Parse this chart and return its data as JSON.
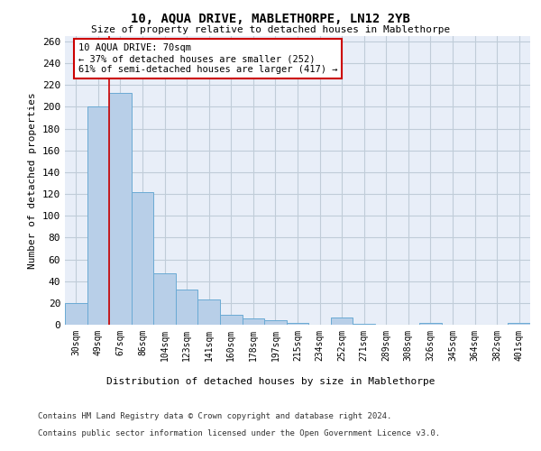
{
  "title": "10, AQUA DRIVE, MABLETHORPE, LN12 2YB",
  "subtitle": "Size of property relative to detached houses in Mablethorpe",
  "xlabel": "Distribution of detached houses by size in Mablethorpe",
  "ylabel": "Number of detached properties",
  "categories": [
    "30sqm",
    "49sqm",
    "67sqm",
    "86sqm",
    "104sqm",
    "123sqm",
    "141sqm",
    "160sqm",
    "178sqm",
    "197sqm",
    "215sqm",
    "234sqm",
    "252sqm",
    "271sqm",
    "289sqm",
    "308sqm",
    "326sqm",
    "345sqm",
    "364sqm",
    "382sqm",
    "401sqm"
  ],
  "values": [
    20,
    200,
    213,
    122,
    47,
    32,
    23,
    9,
    6,
    4,
    2,
    0,
    7,
    1,
    0,
    0,
    2,
    0,
    0,
    0,
    2
  ],
  "bar_color": "#b8cfe8",
  "bar_edge_color": "#6aaad4",
  "vline_x_index": 2,
  "vline_color": "#cc0000",
  "annotation_text": "10 AQUA DRIVE: 70sqm\n← 37% of detached houses are smaller (252)\n61% of semi-detached houses are larger (417) →",
  "annotation_box_facecolor": "white",
  "annotation_box_edgecolor": "#cc0000",
  "ylim": [
    0,
    265
  ],
  "yticks": [
    0,
    20,
    40,
    60,
    80,
    100,
    120,
    140,
    160,
    180,
    200,
    220,
    240,
    260
  ],
  "footer_line1": "Contains HM Land Registry data © Crown copyright and database right 2024.",
  "footer_line2": "Contains public sector information licensed under the Open Government Licence v3.0.",
  "bg_color": "#e8eef8",
  "grid_color": "#c0ccd8"
}
